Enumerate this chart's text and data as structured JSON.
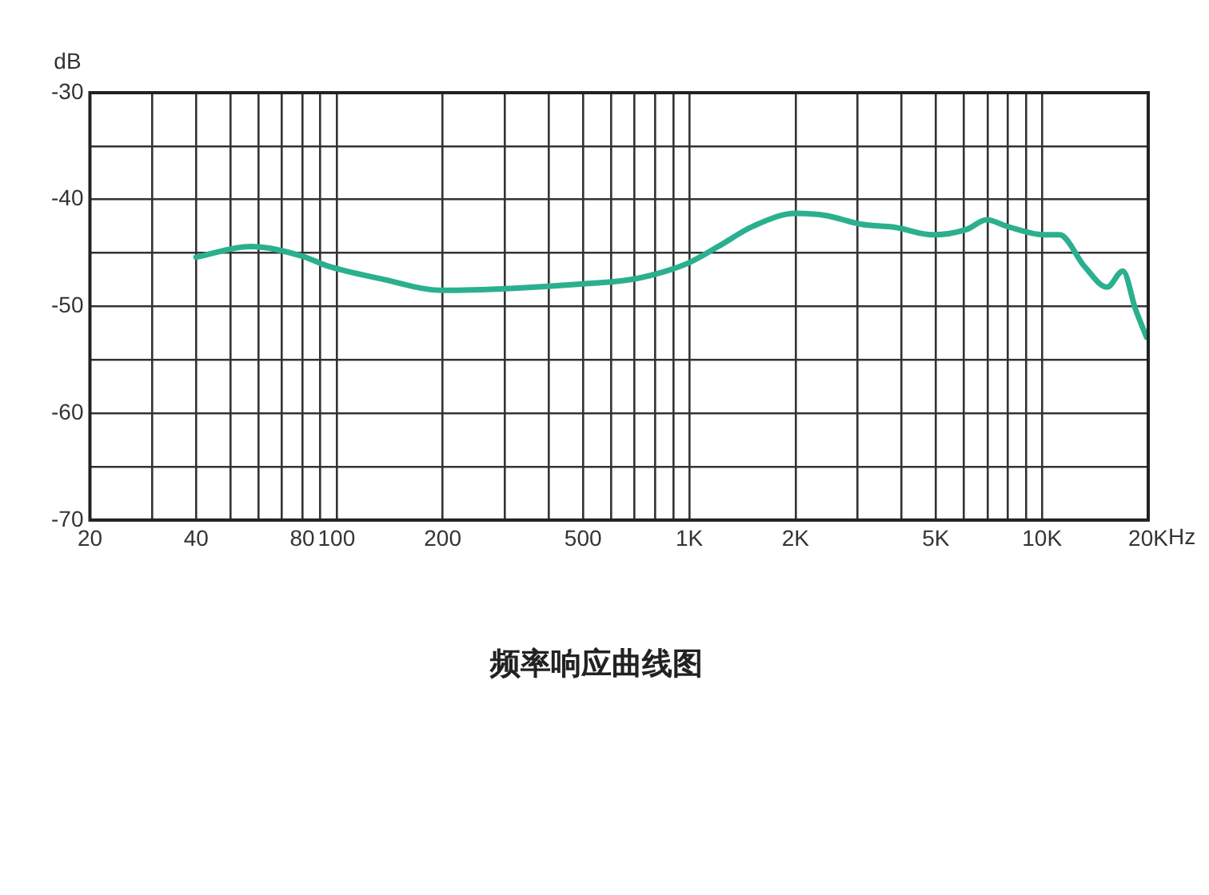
{
  "chart_data": {
    "type": "line",
    "title": "频率响应曲线图",
    "ylabel": "dB",
    "log": "x",
    "grid": true,
    "legend": false,
    "xlim": [
      20,
      20000
    ],
    "ylim": [
      -70,
      -30
    ],
    "xticks": [
      20,
      {
        "value": 30,
        "label": null
      },
      40,
      {
        "value": 50,
        "label": null
      },
      {
        "value": 60,
        "label": null
      },
      {
        "value": 70,
        "label": null
      },
      80,
      {
        "value": 90,
        "label": null
      },
      100,
      200,
      {
        "value": 300,
        "label": null
      },
      {
        "value": 400,
        "label": null
      },
      500,
      {
        "value": 600,
        "label": null
      },
      {
        "value": 700,
        "label": null
      },
      {
        "value": 800,
        "label": null
      },
      {
        "value": 900,
        "label": null
      },
      {
        "value": 1000,
        "label": "1K"
      },
      {
        "value": 2000,
        "label": "2K"
      },
      {
        "value": 3000,
        "label": null
      },
      {
        "value": 4000,
        "label": null
      },
      {
        "value": 5000,
        "label": "5K"
      },
      {
        "value": 6000,
        "label": null
      },
      {
        "value": 7000,
        "label": null
      },
      {
        "value": 8000,
        "label": null
      },
      {
        "value": 9000,
        "label": null
      },
      {
        "value": 10000,
        "label": "10K"
      },
      {
        "value": 20000,
        "label": "20K"
      }
    ],
    "xlabel": "Hz",
    "yticks": [
      -70,
      {
        "value": -65,
        "label": null
      },
      -60,
      {
        "value": -55,
        "label": null
      },
      -50,
      {
        "value": -45,
        "label": null
      },
      -40,
      {
        "value": -35,
        "label": null
      },
      -30
    ],
    "x": [
      40,
      57,
      80,
      94,
      133,
      200,
      318,
      500,
      679,
      858,
      1000,
      1207,
      1516,
      2000,
      2440,
      3059,
      3831,
      4900,
      6110,
      6965,
      7937,
      10100,
      11206,
      13220,
      15280,
      16950,
      18420,
      19800
    ],
    "series": [
      {
        "color": "#2bb08f",
        "values": [
          -45.4,
          -44.4,
          -45.3,
          -46.2,
          -47.4,
          -48.5,
          -48.3,
          -47.9,
          -47.5,
          -46.7,
          -45.9,
          -44.4,
          -42.5,
          -41.3,
          -41.5,
          -42.3,
          -42.6,
          -43.3,
          -42.8,
          -41.9,
          -42.5,
          -43.3,
          -43.3,
          -46.3,
          -48.2,
          -46.7,
          -50.3,
          -52.9
        ]
      }
    ]
  }
}
